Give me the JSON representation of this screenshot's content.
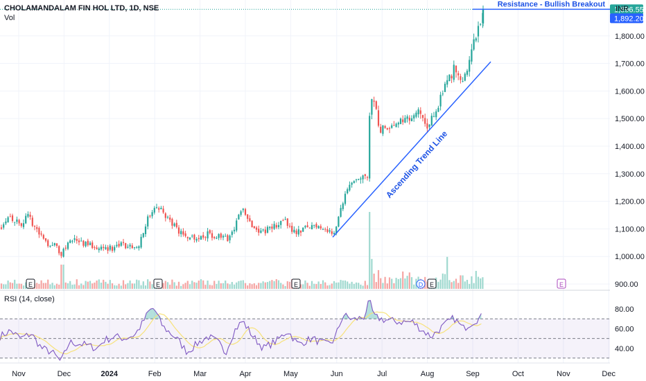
{
  "header": {
    "symbol_title": "CHOLAMANDALAM FIN HOL LTD, 1D, NSE",
    "volume_label": "Vol",
    "currency": "INR"
  },
  "rsi_panel": {
    "label": "RSI (14, close)"
  },
  "annotations": {
    "resistance": "Resistance - Bullish Breakout",
    "trendline": "Ascending Trend Line"
  },
  "price_badges": {
    "upper": "1,896.55",
    "lower": "1,892.20"
  },
  "colors": {
    "up": "#26a69a",
    "down": "#ef5350",
    "up_volume": "#9fd9cf",
    "down_volume": "#f5a5a3",
    "annotation_blue": "#2962ff",
    "text_blue": "#1e53e5",
    "rsi_line": "#7e57c2",
    "rsi_ma": "#f7e27a",
    "rsi_band": "#7e57c2"
  },
  "chart_data": [
    {
      "type": "candlestick",
      "price_axis": {
        "ticks": [
          900,
          1000,
          1100,
          1200,
          1300,
          1400,
          1500,
          1600,
          1700,
          1800
        ],
        "tick_labels": [
          "900.00",
          "1,000.00",
          "1,100.00",
          "1,200.00",
          "1,300.00",
          "1,400.00",
          "1,500.00",
          "1,600.00",
          "1,700.00",
          "1,800.00"
        ],
        "range": [
          880,
          1930
        ]
      },
      "time_axis": {
        "labels": [
          "Nov",
          "Dec",
          "2024",
          "Feb",
          "Mar",
          "Apr",
          "May",
          "Jun",
          "Jul",
          "Aug",
          "Sep",
          "Oct",
          "Nov",
          "Dec"
        ],
        "bold": [
          "2024"
        ]
      },
      "price_path": [
        [
          0,
          1105
        ],
        [
          12,
          1150
        ],
        [
          22,
          1130
        ],
        [
          30,
          1120
        ],
        [
          42,
          1145
        ],
        [
          55,
          1085
        ],
        [
          68,
          1050
        ],
        [
          80,
          1040
        ],
        [
          88,
          1005
        ],
        [
          100,
          1060
        ],
        [
          115,
          1055
        ],
        [
          130,
          1040
        ],
        [
          145,
          1035
        ],
        [
          160,
          1030
        ],
        [
          175,
          1040
        ],
        [
          190,
          1035
        ],
        [
          200,
          1045
        ],
        [
          212,
          1130
        ],
        [
          220,
          1170
        ],
        [
          230,
          1175
        ],
        [
          245,
          1130
        ],
        [
          258,
          1090
        ],
        [
          270,
          1075
        ],
        [
          285,
          1070
        ],
        [
          300,
          1080
        ],
        [
          315,
          1070
        ],
        [
          330,
          1060
        ],
        [
          345,
          1150
        ],
        [
          352,
          1170
        ],
        [
          362,
          1120
        ],
        [
          375,
          1090
        ],
        [
          390,
          1100
        ],
        [
          410,
          1130
        ],
        [
          425,
          1090
        ],
        [
          440,
          1100
        ],
        [
          455,
          1115
        ],
        [
          470,
          1100
        ],
        [
          480,
          1075
        ],
        [
          492,
          1180
        ],
        [
          502,
          1240
        ],
        [
          515,
          1275
        ],
        [
          530,
          1285
        ],
        [
          534,
          1550
        ],
        [
          540,
          1580
        ],
        [
          548,
          1460
        ],
        [
          562,
          1475
        ],
        [
          575,
          1500
        ],
        [
          590,
          1505
        ],
        [
          605,
          1520
        ],
        [
          616,
          1460
        ],
        [
          630,
          1540
        ],
        [
          642,
          1620
        ],
        [
          655,
          1680
        ],
        [
          668,
          1620
        ],
        [
          678,
          1740
        ],
        [
          688,
          1800
        ],
        [
          697,
          1896.55
        ]
      ],
      "volume": {
        "baseline_labels": [
          "E",
          "E",
          "E",
          "D",
          "E",
          "E"
        ],
        "spikes": [
          [
            90,
            35
          ],
          [
            533,
            105
          ],
          [
            536,
            40
          ],
          [
            645,
            40
          ]
        ]
      },
      "resistance_level": 1896.55,
      "last_price": 1892.2
    },
    {
      "type": "line",
      "name": "RSI (14, close)",
      "y_ticks": [
        40,
        60,
        80
      ],
      "y_tick_labels": [
        "40.00",
        "60.00",
        "80.00"
      ],
      "bands": [
        30,
        50,
        70
      ],
      "ylim": [
        25,
        90
      ],
      "values": [
        [
          0,
          52
        ],
        [
          15,
          58
        ],
        [
          30,
          50
        ],
        [
          45,
          55
        ],
        [
          60,
          40
        ],
        [
          75,
          36
        ],
        [
          88,
          26
        ],
        [
          100,
          46
        ],
        [
          120,
          44
        ],
        [
          140,
          40
        ],
        [
          150,
          48
        ],
        [
          165,
          52
        ],
        [
          180,
          50
        ],
        [
          195,
          54
        ],
        [
          205,
          65
        ],
        [
          215,
          78
        ],
        [
          222,
          81
        ],
        [
          235,
          62
        ],
        [
          255,
          50
        ],
        [
          270,
          36
        ],
        [
          285,
          45
        ],
        [
          300,
          52
        ],
        [
          315,
          46
        ],
        [
          325,
          35
        ],
        [
          338,
          58
        ],
        [
          350,
          68
        ],
        [
          365,
          52
        ],
        [
          380,
          40
        ],
        [
          400,
          48
        ],
        [
          415,
          58
        ],
        [
          430,
          44
        ],
        [
          450,
          50
        ],
        [
          470,
          44
        ],
        [
          482,
          48
        ],
        [
          495,
          74
        ],
        [
          510,
          69
        ],
        [
          525,
          72
        ],
        [
          533,
          88
        ],
        [
          540,
          72
        ],
        [
          555,
          69
        ],
        [
          575,
          67
        ],
        [
          595,
          67
        ],
        [
          610,
          58
        ],
        [
          622,
          52
        ],
        [
          640,
          63
        ],
        [
          655,
          71
        ],
        [
          668,
          60
        ],
        [
          680,
          66
        ],
        [
          697,
          73
        ]
      ]
    }
  ]
}
